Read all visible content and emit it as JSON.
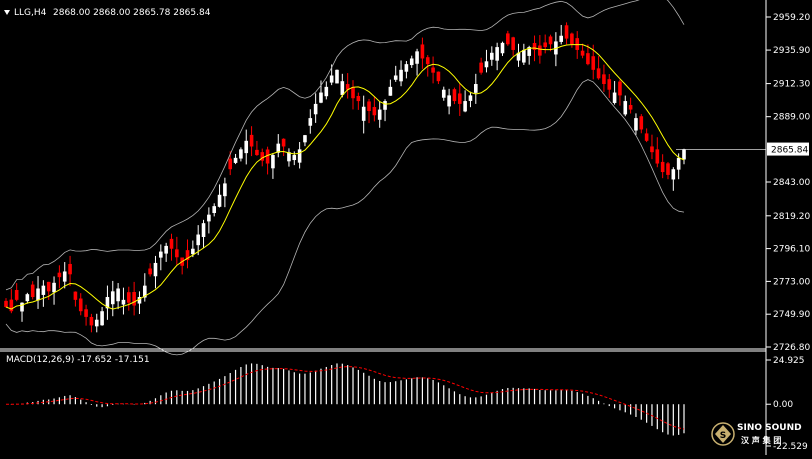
{
  "header": {
    "symbol_label": "LLG,H4",
    "ohlc_text": "2868.00 2868.00 2865.78 2865.84"
  },
  "macd": {
    "label": "MACD(12,26,9) -17.652 -17.151"
  },
  "price_axis": {
    "ticks": [
      "2959.20",
      "2935.90",
      "2912.30",
      "2889.00",
      "2865.84",
      "2843.00",
      "2819.20",
      "2796.10",
      "2773.00",
      "2749.90",
      "2726.80"
    ],
    "current_price": "2865.84"
  },
  "macd_axis": {
    "ticks": [
      "24.925",
      "0.00",
      "-22.529"
    ]
  },
  "colors": {
    "background": "#000000",
    "bull_candle": "#ffffff",
    "bear_candle": "#ff0000",
    "ma_line": "#ffff00",
    "bands": "#b4b4b4",
    "macd_signal": "#ff0000"
  },
  "logo": {
    "line1": "SINO SOUND",
    "line2": "汉 声 集 团"
  },
  "chart_data": {
    "type": "candlestick",
    "symbol": "LLG",
    "timeframe": "H4",
    "ylim": [
      2726.8,
      2959.2
    ],
    "close_path": [
      2755,
      2752,
      2760,
      2758,
      2764,
      2762,
      2768,
      2770,
      2766,
      2772,
      2776,
      2780,
      2778,
      2760,
      2752,
      2748,
      2742,
      2746,
      2752,
      2762,
      2766,
      2768,
      2760,
      2758,
      2756,
      2762,
      2770,
      2778,
      2786,
      2794,
      2798,
      2796,
      2790,
      2784,
      2788,
      2796,
      2806,
      2814,
      2820,
      2826,
      2834,
      2842,
      2852,
      2860,
      2866,
      2872,
      2868,
      2862,
      2858,
      2856,
      2862,
      2870,
      2868,
      2864,
      2862,
      2866,
      2876,
      2888,
      2898,
      2906,
      2910,
      2918,
      2922,
      2914,
      2908,
      2902,
      2900,
      2896,
      2893,
      2890,
      2894,
      2900,
      2910,
      2918,
      2922,
      2926,
      2930,
      2935,
      2930,
      2926,
      2920,
      2914,
      2908,
      2904,
      2900,
      2898,
      2900,
      2904,
      2912,
      2920,
      2928,
      2934,
      2938,
      2941,
      2940,
      2936,
      2934,
      2936,
      2938,
      2936,
      2932,
      2938,
      2940,
      2942,
      2946,
      2944,
      2940,
      2936,
      2932,
      2926,
      2922,
      2916,
      2912,
      2908,
      2906,
      2904,
      2900,
      2894,
      2888,
      2880,
      2872,
      2864,
      2856,
      2850,
      2848,
      2852,
      2860,
      2866
    ],
    "ma": {
      "color": "#ffff00"
    },
    "bollinger_bands": {
      "color": "#b4b4b4"
    },
    "macd": {
      "params": [
        12,
        26,
        9
      ],
      "main": -17.652,
      "signal": -17.151,
      "ylim": [
        -22.529,
        24.925
      ]
    }
  }
}
